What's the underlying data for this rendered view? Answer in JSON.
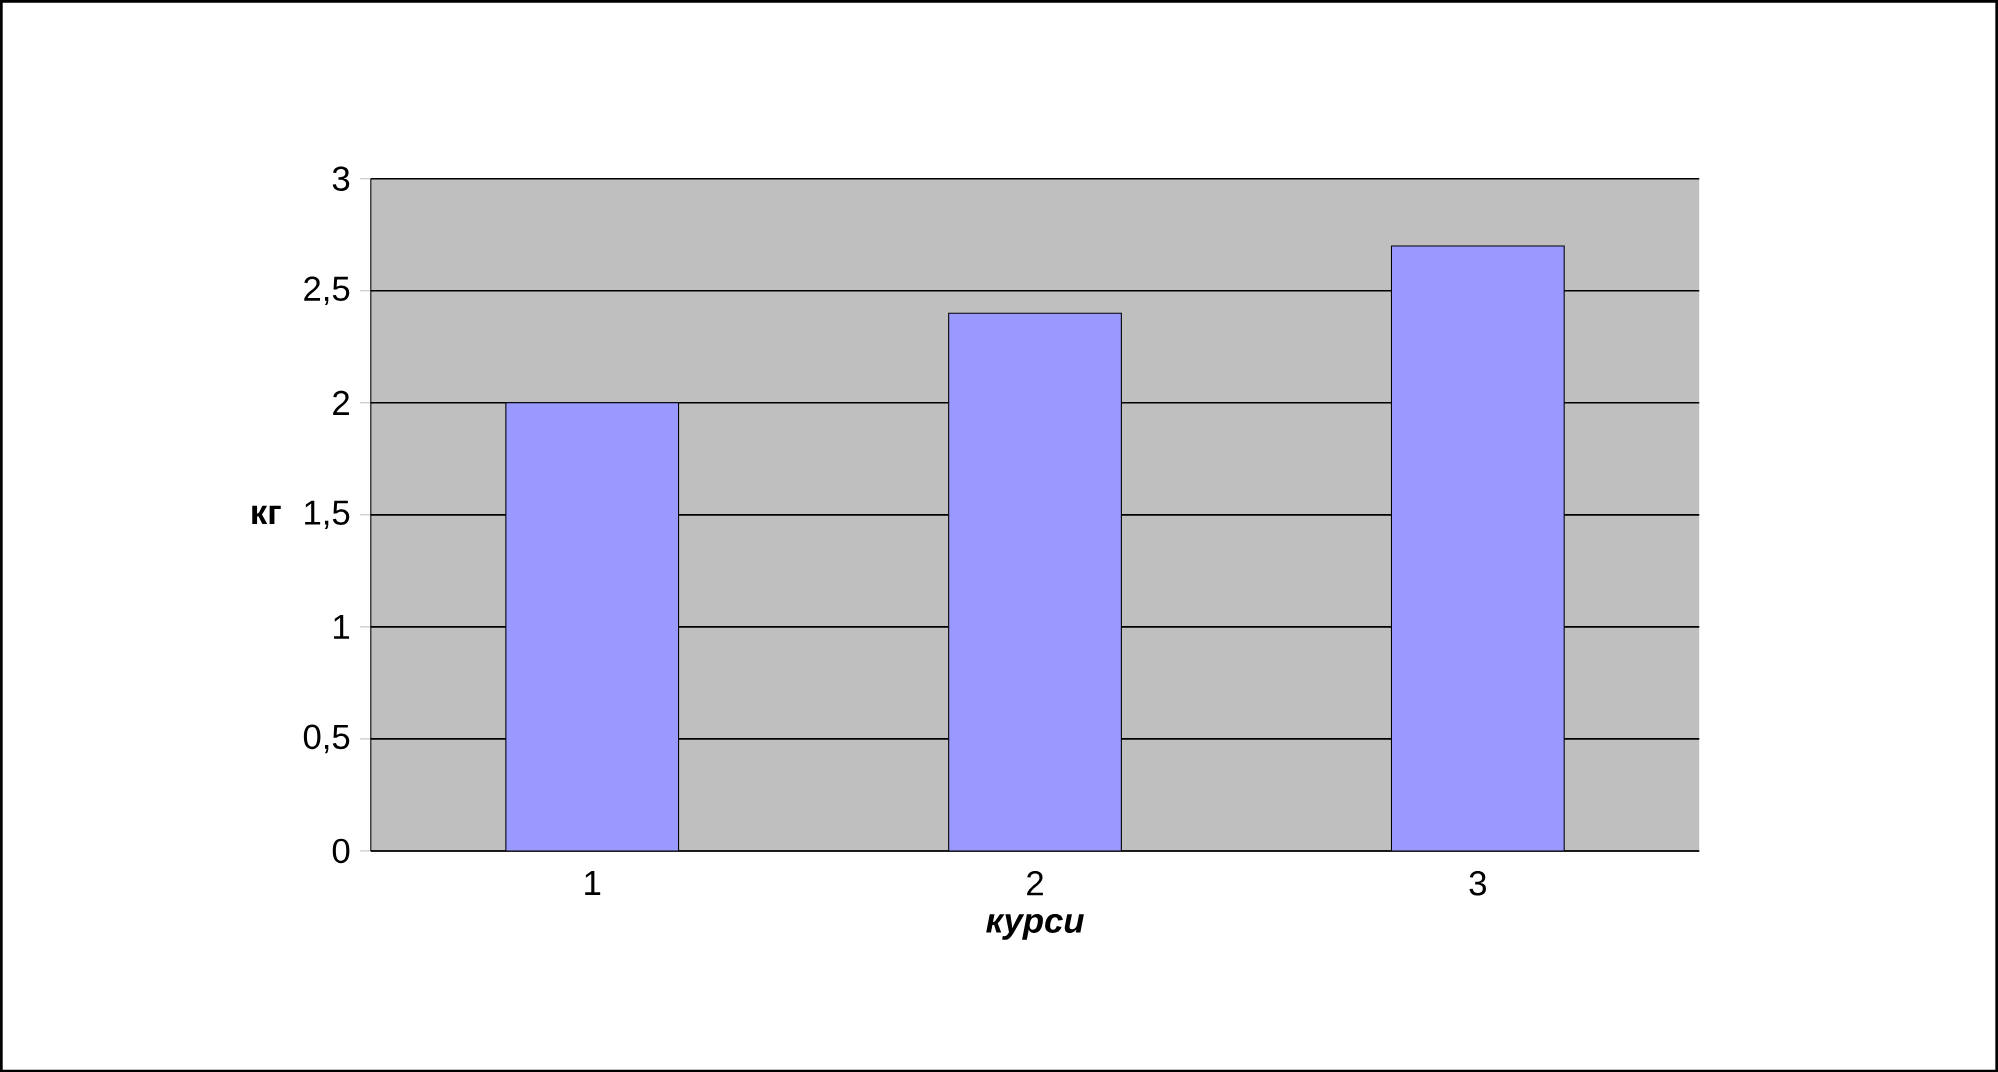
{
  "chart_data": {
    "type": "bar",
    "categories": [
      "1",
      "2",
      "3"
    ],
    "values": [
      2,
      2.4,
      2.7
    ],
    "color": "#9999ff",
    "xlabel": "курси",
    "ylabel": "кг",
    "ylim": [
      0,
      3
    ],
    "yticks": [
      0,
      {
        "value": 0.5,
        "label": "0,5"
      },
      1,
      {
        "value": 1.5,
        "label": "1,5"
      },
      2,
      {
        "value": 2.5,
        "label": "2,5"
      },
      3
    ],
    "grid": "y"
  }
}
